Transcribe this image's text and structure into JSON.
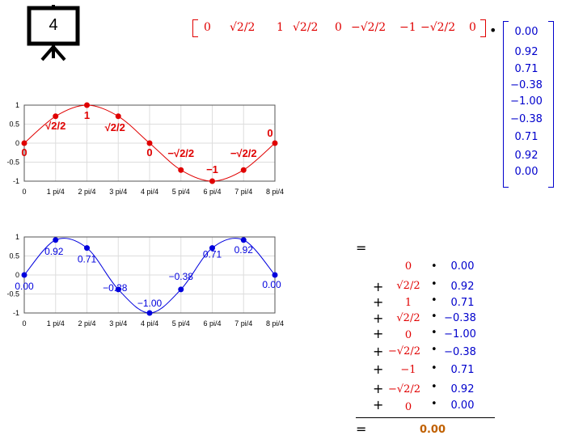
{
  "slide_number": "4",
  "row_vector": [
    "0",
    "√2/2",
    "1",
    "√2/2",
    "0",
    "−√2/2",
    "−1",
    "−√2/2",
    "0"
  ],
  "col_vector": [
    "0.00",
    "0.92",
    "0.71",
    "−0.38",
    "−1.00",
    "−0.38",
    "0.71",
    "0.92",
    "0.00"
  ],
  "dot_operator": "•",
  "equals": "=",
  "plus": "+",
  "mult_dot": "•",
  "sum_result": "0.00",
  "chart_data": [
    {
      "type": "line",
      "series": [
        {
          "values": [
            0,
            0.7071,
            1,
            0.7071,
            0,
            -0.7071,
            -1,
            -0.7071,
            0
          ]
        }
      ],
      "x_tick_labels": [
        "0",
        "1 pi/4",
        "2 pi/4",
        "3 pi/4",
        "4 pi/4",
        "5 pi/4",
        "6 pi/4",
        "7 pi/4",
        "8 pi/4"
      ],
      "y_tick_labels": [
        "1",
        "0.5",
        "0",
        "-0.5",
        "-1"
      ],
      "data_labels": [
        "0",
        "√2/2",
        "1",
        "√2/2",
        "0",
        "−√2/2",
        "−1",
        "−√2/2",
        "0"
      ],
      "ylim": [
        -1,
        1
      ],
      "grid": true,
      "color": "#e00000"
    },
    {
      "type": "line",
      "series": [
        {
          "values": [
            0,
            0.92,
            0.71,
            -0.38,
            -1,
            -0.38,
            0.71,
            0.92,
            0
          ]
        }
      ],
      "x_tick_labels": [
        "0",
        "1 pi/4",
        "2 pi/4",
        "3 pi/4",
        "4 pi/4",
        "5 pi/4",
        "6 pi/4",
        "7 pi/4",
        "8 pi/4"
      ],
      "y_tick_labels": [
        "1",
        "0.5",
        "0",
        "-0.5",
        "-1"
      ],
      "data_labels": [
        "0.00",
        "0.92",
        "0.71",
        "−0.38",
        "−1.00",
        "−0.38",
        "0.71",
        "0.92",
        "0.00"
      ],
      "ylim": [
        -1,
        1
      ],
      "grid": true,
      "color": "#0000dd"
    }
  ]
}
